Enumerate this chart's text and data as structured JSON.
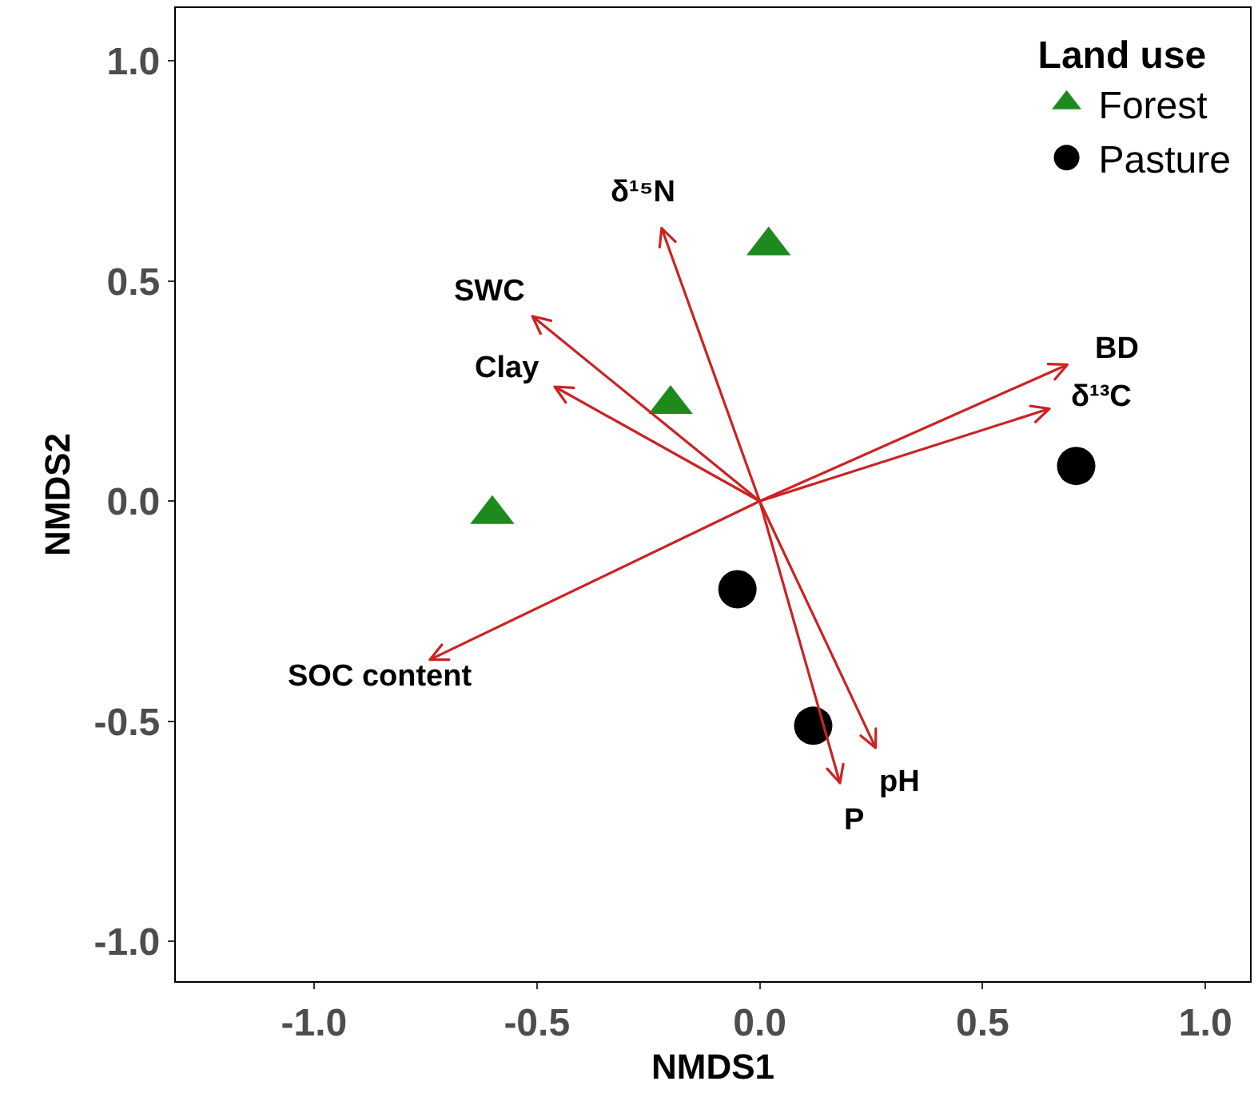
{
  "chart_data": {
    "type": "scatter",
    "xlabel": "NMDS1",
    "ylabel": "NMDS2",
    "legend_title": "Land use",
    "legend": "top right",
    "grid": false,
    "xlim": [
      -1.31,
      1.1
    ],
    "ylim": [
      -1.09,
      1.12
    ],
    "xticks": [
      {
        "value": -1,
        "label": "-1.0"
      },
      -0.5,
      {
        "value": 0,
        "label": "0.0"
      },
      0.5,
      {
        "value": 1,
        "label": "1.0"
      }
    ],
    "yticks": [
      {
        "value": -1,
        "label": "-1.0"
      },
      -0.5,
      {
        "value": 0,
        "label": "0.0"
      },
      0.5,
      {
        "value": 1,
        "label": "1.0"
      }
    ],
    "series": [
      {
        "name": "Forest",
        "marker": "triangle",
        "color": "#1e8a1e",
        "x": [
          0.02,
          -0.2,
          -0.6
        ],
        "values": [
          0.58,
          0.22,
          -0.03
        ]
      },
      {
        "name": "Pasture",
        "marker": "circle",
        "color": "#000000",
        "x": [
          0.71,
          -0.05,
          0.12
        ],
        "values": [
          0.08,
          -0.2,
          -0.51
        ]
      }
    ],
    "annotations": [
      "δ¹⁵N",
      "SWC",
      "Clay",
      "BD",
      "δ¹³C",
      "SOC content",
      "P",
      "pH"
    ]
  }
}
